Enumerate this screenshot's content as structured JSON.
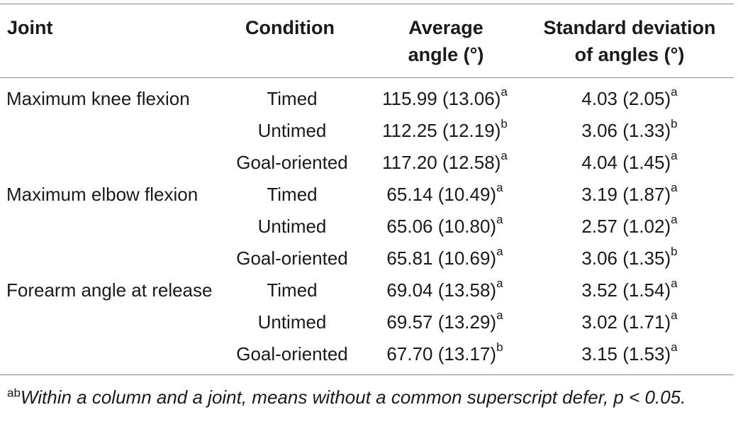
{
  "table": {
    "headers": {
      "joint": "Joint",
      "condition": "Condition",
      "average_line1": "Average",
      "average_line2": "angle (°)",
      "sd_line1": "Standard deviation",
      "sd_line2": "of angles (°)"
    },
    "rows": [
      {
        "joint": "Maximum knee flexion",
        "condition": "Timed",
        "avg": "115.99 (13.06)",
        "avg_sup": "a",
        "sd": "4.03 (2.05)",
        "sd_sup": "a"
      },
      {
        "joint": "",
        "condition": "Untimed",
        "avg": "112.25 (12.19)",
        "avg_sup": "b",
        "sd": "3.06 (1.33)",
        "sd_sup": "b"
      },
      {
        "joint": "",
        "condition": "Goal-oriented",
        "avg": "117.20 (12.58)",
        "avg_sup": "a",
        "sd": "4.04 (1.45)",
        "sd_sup": "a"
      },
      {
        "joint": "Maximum elbow flexion",
        "condition": "Timed",
        "avg": "65.14 (10.49)",
        "avg_sup": "a",
        "sd": "3.19 (1.87)",
        "sd_sup": "a"
      },
      {
        "joint": "",
        "condition": "Untimed",
        "avg": "65.06 (10.80)",
        "avg_sup": "a",
        "sd": "2.57 (1.02)",
        "sd_sup": "a"
      },
      {
        "joint": "",
        "condition": "Goal-oriented",
        "avg": "65.81 (10.69)",
        "avg_sup": "a",
        "sd": "3.06 (1.35)",
        "sd_sup": "b"
      },
      {
        "joint": "Forearm angle at release",
        "condition": "Timed",
        "avg": "69.04 (13.58)",
        "avg_sup": "a",
        "sd": "3.52 (1.54)",
        "sd_sup": "a"
      },
      {
        "joint": "",
        "condition": "Untimed",
        "avg": "69.57 (13.29)",
        "avg_sup": "a",
        "sd": "3.02 (1.71)",
        "sd_sup": "a"
      },
      {
        "joint": "",
        "condition": "Goal-oriented",
        "avg": "67.70 (13.17)",
        "avg_sup": "b",
        "sd": "3.15 (1.53)",
        "sd_sup": "a"
      }
    ]
  },
  "footnote": {
    "marker": "ab",
    "text": "Within a column and a joint, means without a common superscript defer, p < 0.05."
  }
}
